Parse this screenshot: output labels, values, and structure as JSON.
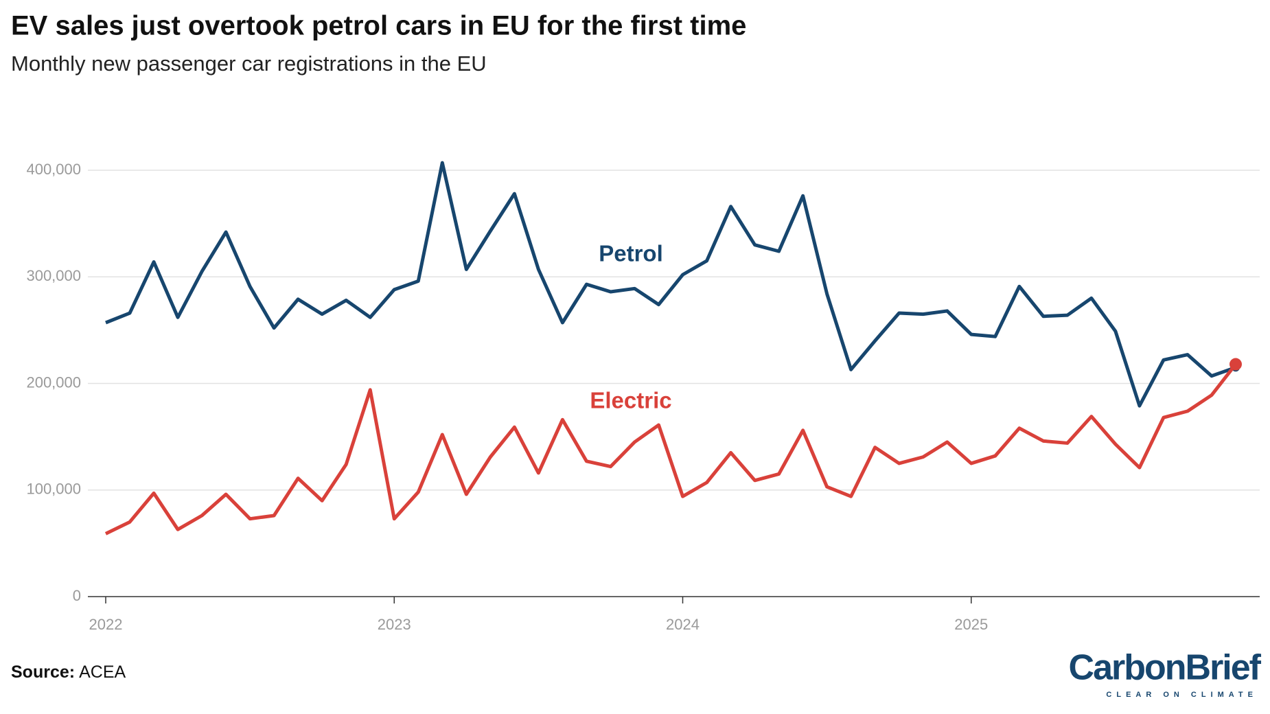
{
  "chart_data": {
    "type": "line",
    "title": "EV sales just overtook petrol cars in EU for the first time",
    "subtitle": "Monthly new passenger car registrations in the EU",
    "source_label": "Source:",
    "source": "ACEA",
    "logo": "CarbonBrief",
    "logo_tagline": "CLEAR ON CLIMATE",
    "annotations": [
      "Petrol",
      "Electric"
    ],
    "x": [
      2022,
      2022.0833,
      2022.1667,
      2022.25,
      2022.3333,
      2022.4167,
      2022.5,
      2022.5833,
      2022.6667,
      2022.75,
      2022.8333,
      2022.9167,
      2023,
      2023.0833,
      2023.1667,
      2023.25,
      2023.3333,
      2023.4167,
      2023.5,
      2023.5833,
      2023.6667,
      2023.75,
      2023.8333,
      2023.9167,
      2024,
      2024.0833,
      2024.1667,
      2024.25,
      2024.3333,
      2024.4167,
      2024.5,
      2024.5833,
      2024.6667,
      2024.75,
      2024.8333,
      2024.9167,
      2025,
      2025.0833,
      2025.1667,
      2025.25,
      2025.3333,
      2025.4167,
      2025.5,
      2025.5833,
      2025.6667,
      2025.75,
      2025.8333,
      2025.9167
    ],
    "series": [
      {
        "name": "Petrol",
        "color": "#17466e",
        "values": [
          257000,
          266000,
          314000,
          262000,
          305000,
          342000,
          291000,
          252000,
          279000,
          265000,
          278000,
          262000,
          288000,
          296000,
          407000,
          307000,
          343000,
          378000,
          307000,
          257000,
          293000,
          286000,
          289000,
          274000,
          302000,
          315000,
          366000,
          330000,
          324000,
          376000,
          284000,
          213000,
          240000,
          266000,
          265000,
          268000,
          246000,
          244000,
          291000,
          263000,
          264000,
          280000,
          249000,
          179000,
          222000,
          227000,
          207000,
          215000
        ]
      },
      {
        "name": "Electric",
        "color": "#d9413a",
        "values": [
          59000,
          70000,
          97000,
          63000,
          76000,
          96000,
          73000,
          76000,
          111000,
          90000,
          124000,
          194000,
          73000,
          98000,
          152000,
          96000,
          131000,
          159000,
          116000,
          166000,
          127000,
          122000,
          145000,
          161000,
          94000,
          107000,
          135000,
          109000,
          115000,
          156000,
          103000,
          94000,
          140000,
          125000,
          131000,
          145000,
          125000,
          132000,
          158000,
          146000,
          144000,
          169000,
          143000,
          121000,
          168000,
          174000,
          189000,
          218000
        ]
      }
    ],
    "xlim": [
      2022,
      2026
    ],
    "xticks": [
      2022,
      2023,
      2024,
      2025
    ],
    "ylim": [
      0,
      400000
    ],
    "yticks": [
      0,
      {
        "value": 100000,
        "label": "100,000"
      },
      {
        "value": 200000,
        "label": "200,000"
      },
      {
        "value": 300000,
        "label": "300,000"
      },
      {
        "value": 400000,
        "label": "400,000"
      }
    ],
    "grid": true
  }
}
